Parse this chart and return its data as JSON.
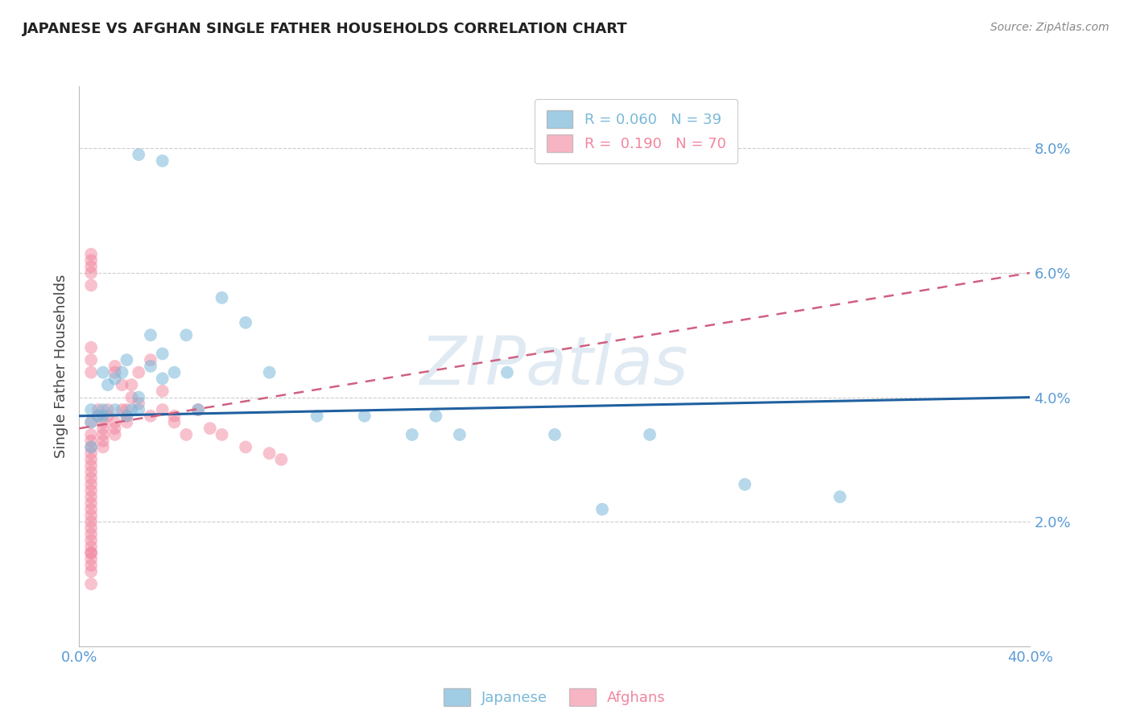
{
  "title": "JAPANESE VS AFGHAN SINGLE FATHER HOUSEHOLDS CORRELATION CHART",
  "source": "Source: ZipAtlas.com",
  "ylabel": "Single Father Households",
  "watermark": "ZIPatlas",
  "xlim": [
    0.0,
    0.4
  ],
  "ylim": [
    0.0,
    0.09
  ],
  "yticks": [
    0.0,
    0.02,
    0.04,
    0.06,
    0.08
  ],
  "japanese_color": "#7ab8d9",
  "afghan_color": "#f2859e",
  "japanese_trend_color": "#2060a0",
  "afghan_trend_color": "#d06080",
  "background_color": "#ffffff",
  "grid_color": "#cccccc",
  "title_color": "#222222",
  "axis_label_color": "#444444",
  "tick_color": "#5b9bd5",
  "japanese_trend_start": 0.037,
  "japanese_trend_end": 0.04,
  "afghan_trend_start": 0.035,
  "afghan_trend_end": 0.06,
  "japanese_scatter_x": [
    0.005,
    0.005,
    0.005,
    0.008,
    0.01,
    0.01,
    0.01,
    0.012,
    0.015,
    0.015,
    0.018,
    0.02,
    0.02,
    0.022,
    0.025,
    0.025,
    0.03,
    0.03,
    0.035,
    0.035,
    0.04,
    0.045,
    0.05,
    0.06,
    0.07,
    0.08,
    0.1,
    0.12,
    0.14,
    0.15,
    0.16,
    0.18,
    0.2,
    0.22,
    0.24,
    0.28,
    0.32,
    0.035,
    0.025
  ],
  "japanese_scatter_y": [
    0.036,
    0.038,
    0.032,
    0.037,
    0.037,
    0.038,
    0.044,
    0.042,
    0.038,
    0.043,
    0.044,
    0.037,
    0.046,
    0.038,
    0.038,
    0.04,
    0.045,
    0.05,
    0.043,
    0.047,
    0.044,
    0.05,
    0.038,
    0.056,
    0.052,
    0.044,
    0.037,
    0.037,
    0.034,
    0.037,
    0.034,
    0.044,
    0.034,
    0.022,
    0.034,
    0.026,
    0.024,
    0.078,
    0.079
  ],
  "afghan_scatter_x": [
    0.005,
    0.005,
    0.005,
    0.005,
    0.005,
    0.005,
    0.005,
    0.005,
    0.005,
    0.005,
    0.005,
    0.005,
    0.005,
    0.005,
    0.005,
    0.005,
    0.005,
    0.005,
    0.005,
    0.005,
    0.005,
    0.008,
    0.008,
    0.01,
    0.01,
    0.01,
    0.01,
    0.01,
    0.012,
    0.012,
    0.015,
    0.015,
    0.015,
    0.015,
    0.015,
    0.018,
    0.018,
    0.02,
    0.02,
    0.02,
    0.022,
    0.022,
    0.025,
    0.025,
    0.03,
    0.03,
    0.035,
    0.035,
    0.04,
    0.04,
    0.045,
    0.05,
    0.055,
    0.06,
    0.07,
    0.08,
    0.085,
    0.005,
    0.005,
    0.005,
    0.005,
    0.005,
    0.005,
    0.005,
    0.005,
    0.005,
    0.005,
    0.005,
    0.005,
    0.005
  ],
  "afghan_scatter_y": [
    0.034,
    0.033,
    0.032,
    0.031,
    0.03,
    0.029,
    0.028,
    0.027,
    0.026,
    0.025,
    0.024,
    0.023,
    0.022,
    0.021,
    0.02,
    0.019,
    0.018,
    0.017,
    0.016,
    0.015,
    0.036,
    0.037,
    0.038,
    0.036,
    0.035,
    0.034,
    0.033,
    0.032,
    0.038,
    0.037,
    0.036,
    0.035,
    0.034,
    0.044,
    0.045,
    0.038,
    0.042,
    0.037,
    0.036,
    0.038,
    0.042,
    0.04,
    0.039,
    0.044,
    0.037,
    0.046,
    0.041,
    0.038,
    0.036,
    0.037,
    0.034,
    0.038,
    0.035,
    0.034,
    0.032,
    0.031,
    0.03,
    0.06,
    0.062,
    0.058,
    0.048,
    0.046,
    0.044,
    0.063,
    0.061,
    0.01,
    0.012,
    0.013,
    0.014,
    0.015
  ]
}
